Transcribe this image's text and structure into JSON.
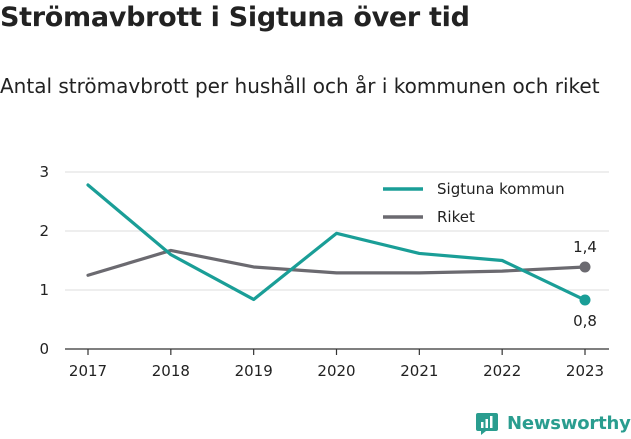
{
  "title": "Strömavbrott i Sigtuna över tid",
  "subtitle": "Antal strömavbrott per hushåll och år i kommunen och riket",
  "brand": {
    "name": "Newsworthy",
    "icon": "newsworthy-logo-icon"
  },
  "chart_data": {
    "type": "line",
    "categories": [
      "2017",
      "2018",
      "2019",
      "2020",
      "2021",
      "2022",
      "2023"
    ],
    "ylim": [
      0,
      3
    ],
    "yticks": [
      "0",
      "1",
      "2",
      "3"
    ],
    "grid": true,
    "legend_position": "top-right",
    "series": [
      {
        "name": "Sigtuna kommun",
        "color": "#1a9e97",
        "values": [
          2.78,
          1.6,
          0.84,
          1.96,
          1.62,
          1.5,
          0.83
        ],
        "end_label": "0,8"
      },
      {
        "name": "Riket",
        "color": "#6b6a70",
        "values": [
          1.25,
          1.67,
          1.39,
          1.29,
          1.29,
          1.32,
          1.39
        ],
        "end_label": "1,4"
      }
    ]
  }
}
